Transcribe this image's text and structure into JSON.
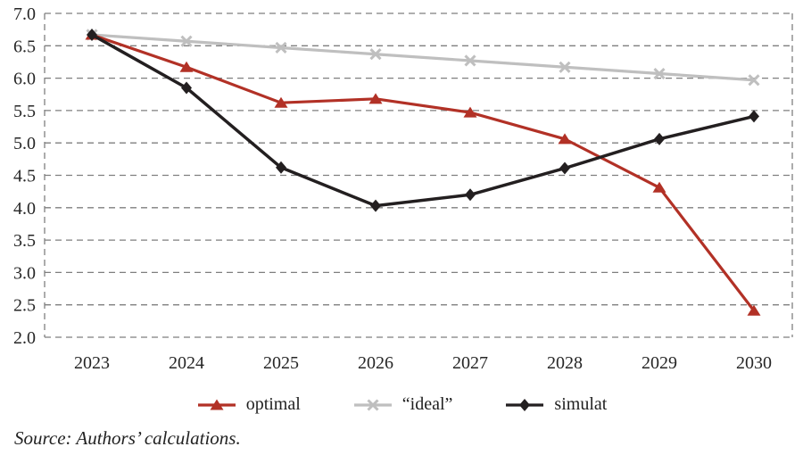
{
  "figure": {
    "source_note": "Source: Authors’ calculations."
  },
  "chart_data": {
    "type": "line",
    "title": "",
    "xlabel": "",
    "ylabel": "",
    "x": [
      "2023",
      "2024",
      "2025",
      "2026",
      "2027",
      "2028",
      "2029",
      "2030"
    ],
    "series": [
      {
        "id": "optimal",
        "name": "optimal",
        "marker": "triangle",
        "color": "#b23126",
        "values": [
          6.67,
          6.17,
          5.62,
          5.68,
          5.47,
          5.06,
          4.31,
          2.41
        ]
      },
      {
        "id": "ideal",
        "name": "“ideal”",
        "marker": "x",
        "color": "#bfbfbf",
        "values": [
          6.67,
          6.57,
          6.47,
          6.37,
          6.27,
          6.17,
          6.07,
          5.97
        ]
      },
      {
        "id": "simulat",
        "name": "simulat",
        "marker": "diamond",
        "color": "#231f20",
        "values": [
          6.67,
          5.85,
          4.62,
          4.03,
          4.2,
          4.61,
          5.06,
          5.41
        ]
      }
    ],
    "ylim": [
      2.0,
      7.0
    ],
    "ytick_step": 0.5,
    "ytick_labels": [
      "7.0",
      "6.5",
      "6.0",
      "5.5",
      "5.0",
      "4.5",
      "4.0",
      "3.5",
      "3.0",
      "2.5",
      "2.0"
    ],
    "grid": "horizontal-dashed",
    "plot_border": "dashed",
    "grid_color": "#7f7f7f",
    "legend_position": "bottom"
  }
}
